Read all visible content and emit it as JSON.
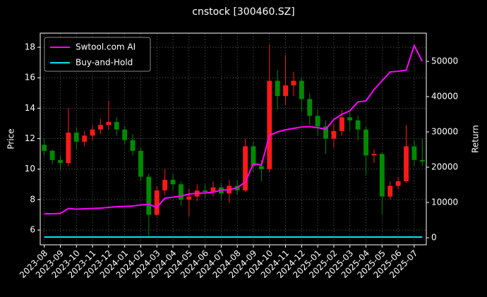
{
  "chart_data": {
    "type": "candlestick",
    "title": "cnstock [300460.SZ]",
    "ylabel": "Price",
    "y2label": "Return",
    "categories": [
      "2023-08",
      null,
      "2023-09",
      null,
      "2023-10",
      null,
      "2023-11",
      null,
      "2023-12",
      null,
      "2024-01",
      null,
      "2024-02",
      null,
      "2024-03",
      null,
      "2024-04",
      null,
      "2024-05",
      null,
      "2024-06",
      null,
      "2024-07",
      null,
      "2024-08",
      null,
      "2024-09",
      null,
      "2024-10",
      null,
      "2024-11",
      null,
      "2024-12",
      null,
      "2025-01",
      null,
      "2025-02",
      null,
      "2025-03",
      null,
      "2025-04",
      null,
      "2025-05",
      null,
      "2025-06",
      null,
      "2025-07",
      null
    ],
    "candles": {
      "up_color": "#ff1a1a",
      "down_color": "#008a00",
      "open": [
        11.6,
        11.2,
        10.6,
        10.4,
        12.4,
        11.8,
        12.2,
        12.6,
        12.9,
        13.1,
        12.6,
        11.9,
        11.2,
        9.5,
        7.0,
        8.6,
        9.3,
        9.0,
        8.0,
        8.2,
        8.6,
        8.5,
        8.8,
        8.4,
        8.9,
        8.6,
        11.5,
        10.2,
        10.0,
        15.8,
        14.8,
        15.5,
        15.8,
        14.6,
        13.5,
        12.8,
        12.0,
        12.5,
        13.4,
        13.2,
        12.6,
        10.9,
        11.0,
        8.2,
        8.9,
        9.2,
        11.5,
        10.6
      ],
      "high": [
        12.0,
        11.3,
        10.9,
        14.0,
        12.7,
        12.5,
        12.9,
        13.3,
        14.5,
        13.4,
        12.8,
        12.3,
        11.4,
        9.7,
        8.9,
        10.0,
        9.7,
        9.2,
        8.7,
        9.0,
        9.0,
        9.2,
        9.1,
        9.3,
        9.3,
        12.0,
        11.8,
        10.6,
        18.2,
        16.5,
        17.5,
        16.4,
        16.0,
        15.0,
        13.9,
        13.2,
        13.0,
        13.9,
        13.8,
        13.5,
        12.8,
        11.3,
        11.1,
        9.2,
        9.5,
        12.9,
        11.9,
        12.0
      ],
      "low": [
        10.9,
        10.3,
        9.9,
        10.2,
        11.3,
        11.5,
        11.9,
        12.3,
        12.6,
        12.2,
        11.6,
        10.9,
        9.2,
        5.6,
        6.9,
        8.3,
        8.6,
        7.6,
        6.9,
        7.9,
        8.1,
        8.2,
        8.0,
        7.8,
        8.3,
        8.5,
        9.8,
        9.2,
        9.8,
        13.9,
        14.2,
        14.8,
        13.8,
        12.9,
        12.2,
        11.0,
        11.4,
        12.2,
        12.5,
        11.9,
        9.6,
        10.4,
        7.0,
        8.0,
        8.7,
        9.1,
        10.2,
        10.2
      ],
      "close": [
        11.2,
        10.6,
        10.4,
        12.4,
        11.8,
        12.2,
        12.6,
        12.9,
        13.1,
        12.6,
        11.9,
        11.2,
        9.5,
        7.0,
        8.6,
        9.3,
        9.0,
        8.0,
        8.2,
        8.6,
        8.5,
        8.8,
        8.4,
        8.9,
        8.6,
        11.5,
        10.2,
        10.0,
        15.8,
        14.8,
        15.5,
        15.8,
        14.6,
        13.5,
        12.8,
        12.0,
        12.5,
        13.4,
        13.2,
        12.6,
        10.9,
        11.0,
        8.2,
        8.9,
        9.2,
        11.5,
        10.6,
        10.5
      ]
    },
    "series": [
      {
        "name": "Swtool.com AI",
        "color": "#ff00ff",
        "axis": "y2",
        "values": [
          6800,
          6800,
          6900,
          8300,
          8100,
          8200,
          8300,
          8400,
          8600,
          8800,
          8900,
          9000,
          9300,
          9500,
          8600,
          11200,
          11500,
          11800,
          12400,
          12600,
          12700,
          12900,
          13500,
          13600,
          14200,
          15800,
          21000,
          20600,
          29000,
          30000,
          30600,
          31000,
          31400,
          31500,
          31200,
          30800,
          33500,
          35000,
          36000,
          38500,
          38800,
          42000,
          44500,
          47000,
          47200,
          47500,
          54500,
          50000
        ]
      },
      {
        "name": "Buy-and-Hold",
        "color": "#00e5ee",
        "axis": "y2",
        "values": [
          200,
          200,
          200,
          200,
          200,
          200,
          200,
          200,
          200,
          200,
          200,
          200,
          200,
          200,
          200,
          200,
          200,
          200,
          200,
          200,
          200,
          200,
          200,
          200,
          200,
          200,
          200,
          200,
          200,
          200,
          200,
          200,
          200,
          200,
          200,
          200,
          200,
          200,
          200,
          200,
          200,
          200,
          200,
          200,
          200,
          200,
          200,
          200
        ]
      }
    ],
    "ylim": [
      5.03,
      18.93
    ],
    "yticks": [
      6,
      8,
      10,
      12,
      14,
      16,
      18
    ],
    "y2lim": [
      -2000,
      58000
    ],
    "y2ticks": [
      0,
      10000,
      20000,
      30000,
      40000,
      50000
    ],
    "grid": true,
    "legend": "upper left"
  }
}
